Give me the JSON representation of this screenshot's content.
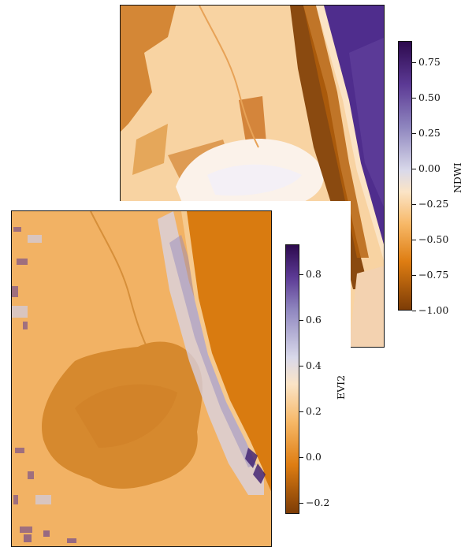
{
  "ndwi": {
    "colorbar_label": "NDWI",
    "ticks": [
      "0.75",
      "0.50",
      "0.25",
      "0.00",
      "−0.25",
      "−0.50",
      "−0.75",
      "−1.00"
    ],
    "range": [
      -1.0,
      0.9
    ]
  },
  "evi2": {
    "colorbar_label": "EVI2",
    "ticks": [
      "0.8",
      "0.6",
      "0.4",
      "0.2",
      "0.0",
      "−0.2"
    ],
    "range": [
      -0.25,
      0.93
    ]
  },
  "colors": {
    "high": "#2d0a4e",
    "mid": "#f7f7f7",
    "low": "#7d3c06",
    "land_orange": "#f5c07d",
    "sea_purple": "#4a2a8a",
    "sea_orange": "#d67b12"
  }
}
